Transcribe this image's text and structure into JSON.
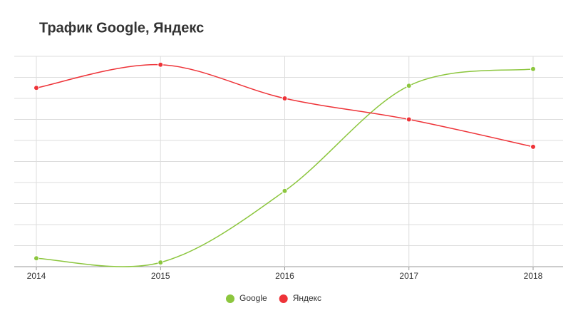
{
  "chart_data": {
    "type": "line",
    "title": "Трафик Google, Яндекс",
    "categories": [
      "2014",
      "2015",
      "2016",
      "2017",
      "2018"
    ],
    "series": [
      {
        "name": "Google",
        "color": "#8cc63e",
        "values": [
          0.4,
          0.2,
          3.6,
          8.6,
          9.4
        ]
      },
      {
        "name": "Яндекс",
        "color": "#ee3338",
        "values": [
          8.5,
          9.6,
          8.0,
          7.0,
          5.7
        ]
      }
    ],
    "ylim": [
      0,
      10
    ],
    "yticks": [
      0,
      1,
      2,
      3,
      4,
      5,
      6,
      7,
      8,
      9,
      10
    ],
    "ytick_labels": false,
    "grid": true,
    "smooth": true,
    "legend": "bottom"
  }
}
